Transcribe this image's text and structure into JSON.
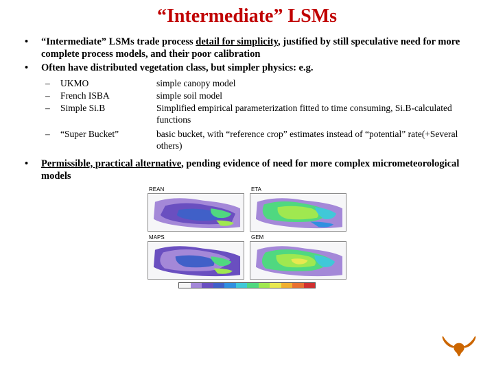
{
  "title": "“Intermediate” LSMs",
  "title_color": "#c00000",
  "bullets": [
    {
      "pre": "“Intermediate” LSMs trade process ",
      "underlined": "detail for simplicity",
      "post": ", justified by still speculative need for more complete process models, and their poor calibration"
    },
    {
      "pre": "Often have distributed vegetation class, but simpler physics: e.g.",
      "underlined": "",
      "post": ""
    }
  ],
  "sub_items": [
    {
      "name": "UKMO",
      "desc": "simple canopy model"
    },
    {
      "name": "French ISBA",
      "desc": "simple soil model"
    },
    {
      "name": "Simple Si.B",
      "desc": "Simplified empirical parameterization fitted to time consuming, Si.B-calculated functions"
    },
    {
      "name": "“Super Bucket”",
      "desc": "basic bucket, with “reference crop” estimates instead of “potential” rate(+Several others)"
    }
  ],
  "bullet3": {
    "underlined": "Permissible, practical alternative",
    "post": ", pending evidence of need for more complex micrometeorological models"
  },
  "maps": {
    "labels": [
      "REAN",
      "ETA",
      "MAPS",
      "GEM"
    ],
    "colorbar": [
      "#f5f5f5",
      "#a488d8",
      "#6a4fc0",
      "#4060c8",
      "#3090e0",
      "#40c8d8",
      "#50d880",
      "#a0e850",
      "#e8e850",
      "#f0b030",
      "#e87030",
      "#d03030"
    ],
    "map_bg": "#f6f6f8"
  },
  "logo_color": "#cc6600"
}
